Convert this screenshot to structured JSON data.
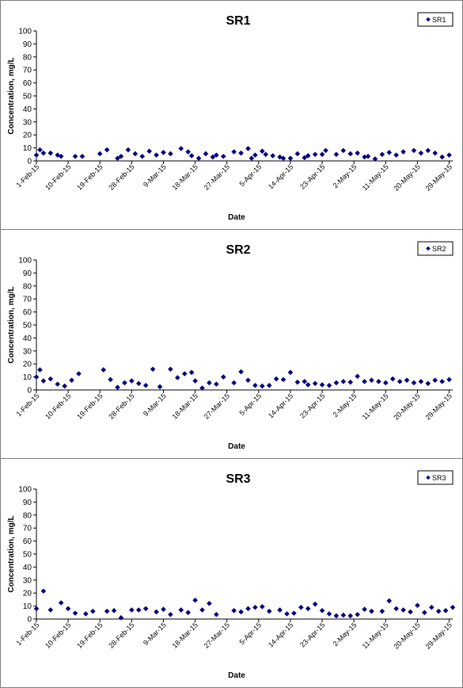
{
  "chart_data": [
    {
      "type": "scatter",
      "title": "SR1",
      "xlabel": "Date",
      "ylabel": "Concentration, mg/L",
      "ylim": [
        0,
        100
      ],
      "yticks": [
        "0",
        "10",
        "20",
        "30",
        "40",
        "50",
        "60",
        "70",
        "80",
        "90",
        "100"
      ],
      "xticks": [
        "1-Feb-15",
        "10-Feb-15",
        "19-Feb-15",
        "28-Feb-15",
        "9-Mar-15",
        "18-Mar-15",
        "27-Mar-15",
        "5-Apr-15",
        "14-Apr-15",
        "23-Apr-15",
        "2-May-15",
        "11-May-15",
        "20-May-15",
        "29-May-15"
      ],
      "xlim": [
        "2015-02-01",
        "2015-05-30"
      ],
      "legend_position": "top-right",
      "marker_color": "#000080",
      "series": [
        {
          "name": "SR1",
          "x": [
            "2015-02-01",
            "2015-02-02",
            "2015-02-03",
            "2015-02-05",
            "2015-02-07",
            "2015-02-08",
            "2015-02-12",
            "2015-02-14",
            "2015-02-19",
            "2015-02-21",
            "2015-02-24",
            "2015-02-25",
            "2015-02-27",
            "2015-03-01",
            "2015-03-03",
            "2015-03-05",
            "2015-03-07",
            "2015-03-09",
            "2015-03-11",
            "2015-03-14",
            "2015-03-16",
            "2015-03-17",
            "2015-03-19",
            "2015-03-21",
            "2015-03-23",
            "2015-03-24",
            "2015-03-26",
            "2015-03-29",
            "2015-03-31",
            "2015-04-02",
            "2015-04-03",
            "2015-04-04",
            "2015-04-06",
            "2015-04-07",
            "2015-04-09",
            "2015-04-11",
            "2015-04-12",
            "2015-04-14",
            "2015-04-16",
            "2015-04-18",
            "2015-04-19",
            "2015-04-21",
            "2015-04-23",
            "2015-04-24",
            "2015-04-27",
            "2015-04-29",
            "2015-05-01",
            "2015-05-03",
            "2015-05-05",
            "2015-05-06",
            "2015-05-08",
            "2015-05-10",
            "2015-05-12",
            "2015-05-14",
            "2015-05-16",
            "2015-05-19",
            "2015-05-21",
            "2015-05-23",
            "2015-05-25",
            "2015-05-27",
            "2015-05-29"
          ],
          "y": [
            4.5,
            8.5,
            6,
            6,
            4.5,
            3.5,
            3.5,
            3.5,
            5.5,
            8.5,
            2,
            3.5,
            8.5,
            5.5,
            3.5,
            7.5,
            4.5,
            6.5,
            5.5,
            9.5,
            7,
            4,
            2,
            5.5,
            3,
            4.5,
            3.5,
            7,
            6,
            9.5,
            2,
            4.5,
            7.5,
            5,
            4,
            3,
            2,
            2,
            5.5,
            2.5,
            4,
            5,
            5,
            8,
            5,
            8,
            5.5,
            6,
            3,
            3.5,
            1.5,
            5,
            6.5,
            4.5,
            7,
            8,
            6,
            8,
            6,
            3,
            4.5
          ]
        }
      ]
    },
    {
      "type": "scatter",
      "title": "SR2",
      "xlabel": "Date",
      "ylabel": "Concentration, mg/L",
      "ylim": [
        0,
        100
      ],
      "yticks": [
        "0",
        "10",
        "20",
        "30",
        "40",
        "50",
        "60",
        "70",
        "80",
        "90",
        "100"
      ],
      "xticks": [
        "1-Feb-15",
        "10-Feb-15",
        "19-Feb-15",
        "28-Feb-15",
        "9-Mar-15",
        "18-Mar-15",
        "27-Mar-15",
        "5-Apr-15",
        "14-Apr-15",
        "23-Apr-15",
        "2-May-15",
        "11-May-15",
        "20-May-15",
        "29-May-15"
      ],
      "xlim": [
        "2015-02-01",
        "2015-05-30"
      ],
      "legend_position": "top-right",
      "marker_color": "#000080",
      "series": [
        {
          "name": "SR2",
          "x": [
            "2015-02-01",
            "2015-02-02",
            "2015-02-03",
            "2015-02-05",
            "2015-02-07",
            "2015-02-09",
            "2015-02-11",
            "2015-02-13",
            "2015-02-20",
            "2015-02-22",
            "2015-02-24",
            "2015-02-26",
            "2015-02-28",
            "2015-03-02",
            "2015-03-04",
            "2015-03-06",
            "2015-03-08",
            "2015-03-11",
            "2015-03-13",
            "2015-03-15",
            "2015-03-17",
            "2015-03-18",
            "2015-03-20",
            "2015-03-22",
            "2015-03-24",
            "2015-03-26",
            "2015-03-29",
            "2015-03-31",
            "2015-04-02",
            "2015-04-04",
            "2015-04-06",
            "2015-04-08",
            "2015-04-10",
            "2015-04-12",
            "2015-04-14",
            "2015-04-16",
            "2015-04-18",
            "2015-04-19",
            "2015-04-21",
            "2015-04-23",
            "2015-04-25",
            "2015-04-27",
            "2015-04-29",
            "2015-05-01",
            "2015-05-03",
            "2015-05-05",
            "2015-05-07",
            "2015-05-09",
            "2015-05-11",
            "2015-05-13",
            "2015-05-15",
            "2015-05-17",
            "2015-05-19",
            "2015-05-21",
            "2015-05-23",
            "2015-05-25",
            "2015-05-27",
            "2015-05-29"
          ],
          "y": [
            10,
            15.5,
            7,
            8.5,
            4.5,
            3,
            7.5,
            12.5,
            15.5,
            8,
            2,
            5.5,
            7,
            5,
            3.5,
            16,
            2.5,
            16,
            9.5,
            12.5,
            13.5,
            7,
            1.5,
            5.5,
            4.5,
            10,
            5.5,
            14,
            7.5,
            3.5,
            3,
            3.5,
            8.5,
            8,
            13.5,
            6,
            6.5,
            4,
            5,
            4,
            3.5,
            5.5,
            6.5,
            6,
            10.5,
            6.5,
            7.5,
            6.5,
            5.5,
            8.5,
            6.5,
            7.5,
            5.5,
            6.5,
            5,
            7.5,
            6.5,
            8
          ]
        }
      ]
    },
    {
      "type": "scatter",
      "title": "SR3",
      "xlabel": "Date",
      "ylabel": "Concentration, mg/L",
      "ylim": [
        0,
        100
      ],
      "yticks": [
        "0",
        "10",
        "20",
        "30",
        "40",
        "50",
        "60",
        "70",
        "80",
        "90",
        "100"
      ],
      "xticks": [
        "1-Feb-15",
        "10-Feb-15",
        "19-Feb-15",
        "28-Feb-15",
        "9-Mar-15",
        "18-Mar-15",
        "27-Mar-15",
        "5-Apr-15",
        "14-Apr-15",
        "23-Apr-15",
        "2-May-15",
        "11-May-15",
        "20-May-15",
        "29-May-15"
      ],
      "xlim": [
        "2015-02-01",
        "2015-05-30"
      ],
      "legend_position": "top-right",
      "marker_color": "#000080",
      "series": [
        {
          "name": "SR3",
          "x": [
            "2015-02-01",
            "2015-02-03",
            "2015-02-05",
            "2015-02-08",
            "2015-02-10",
            "2015-02-12",
            "2015-02-15",
            "2015-02-17",
            "2015-02-21",
            "2015-02-23",
            "2015-02-25",
            "2015-02-28",
            "2015-03-02",
            "2015-03-04",
            "2015-03-07",
            "2015-03-09",
            "2015-03-11",
            "2015-03-14",
            "2015-03-16",
            "2015-03-18",
            "2015-03-20",
            "2015-03-22",
            "2015-03-24",
            "2015-03-29",
            "2015-03-31",
            "2015-04-02",
            "2015-04-04",
            "2015-04-06",
            "2015-04-08",
            "2015-04-11",
            "2015-04-13",
            "2015-04-15",
            "2015-04-17",
            "2015-04-19",
            "2015-04-21",
            "2015-04-23",
            "2015-04-25",
            "2015-04-27",
            "2015-04-29",
            "2015-05-01",
            "2015-05-03",
            "2015-05-05",
            "2015-05-07",
            "2015-05-10",
            "2015-05-12",
            "2015-05-14",
            "2015-05-16",
            "2015-05-18",
            "2015-05-20",
            "2015-05-22",
            "2015-05-24",
            "2015-05-26",
            "2015-05-28",
            "2015-05-30"
          ],
          "y": [
            8,
            21.5,
            7,
            12.5,
            8,
            4.5,
            4,
            6,
            6,
            6.5,
            1,
            7,
            7,
            8,
            5.5,
            7.5,
            3.5,
            7,
            5,
            14.5,
            7,
            12,
            3.5,
            6.5,
            5.5,
            8,
            9,
            9.5,
            6,
            7,
            4,
            4.5,
            9,
            8,
            11.5,
            6.5,
            4,
            2.5,
            3,
            2.5,
            3.5,
            7.5,
            6,
            6,
            14,
            8,
            7,
            5.5,
            10.5,
            5,
            9,
            6,
            6.5,
            9
          ]
        }
      ]
    }
  ]
}
